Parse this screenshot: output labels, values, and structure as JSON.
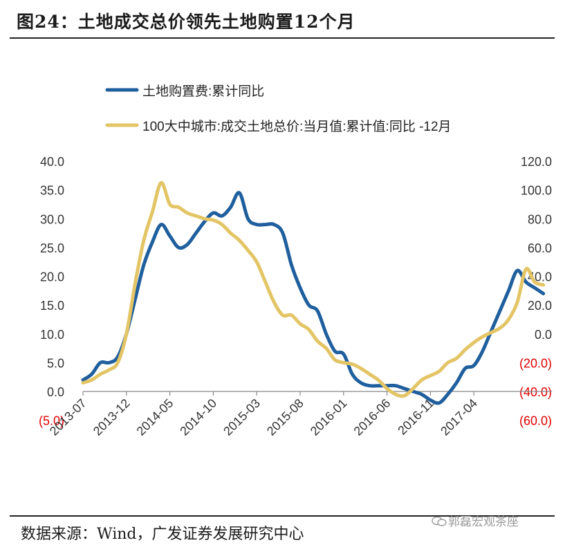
{
  "header": {
    "title": "图24：土地成交总价领先土地购置12个月"
  },
  "footer": {
    "source": "数据来源：Wind，广发证券发展研究中心",
    "watermark": "郭磊宏观茶座"
  },
  "colors": {
    "series1": "#1f5f9e",
    "series2": "#e3c565",
    "negative": "#e00000"
  },
  "chart_data": {
    "type": "line",
    "x_ticks": [
      "2013-07",
      "2013-12",
      "2014-05",
      "2014-10",
      "2015-03",
      "2015-08",
      "2016-01",
      "2016-06",
      "2016-11",
      "2017-04"
    ],
    "y_left": {
      "ticks": [
        "40.0",
        "35.0",
        "30.0",
        "25.0",
        "20.0",
        "15.0",
        "10.0",
        "5.0",
        "0.0",
        "(5.0)"
      ],
      "range": [
        -5,
        40
      ]
    },
    "y_right": {
      "ticks": [
        "120.0",
        "100.0",
        "80.0",
        "60.0",
        "40.0",
        "20.0",
        "0.0",
        "(20.0)",
        "(40.0)",
        "(60.0)"
      ],
      "range": [
        -60,
        120
      ]
    },
    "legend": [
      "土地购置费:累计同比",
      "100大中城市:成交土地总价:当月值:累计值:同比 -12月"
    ],
    "legend_position": "top-left",
    "series": [
      {
        "name": "土地购置费:累计同比",
        "axis": "left",
        "color": "#1f5f9e",
        "points": [
          [
            0,
            2
          ],
          [
            1,
            3
          ],
          [
            2,
            5
          ],
          [
            3,
            5
          ],
          [
            4,
            6
          ],
          [
            5,
            10
          ],
          [
            6,
            16
          ],
          [
            7,
            22
          ],
          [
            8,
            26
          ],
          [
            9,
            29
          ],
          [
            10,
            27
          ],
          [
            11,
            25
          ],
          [
            12,
            25.5
          ],
          [
            13,
            27.5
          ],
          [
            14,
            29.5
          ],
          [
            15,
            31
          ],
          [
            16,
            30.5
          ],
          [
            17,
            32
          ],
          [
            18,
            34.5
          ],
          [
            19,
            30
          ],
          [
            20,
            29
          ],
          [
            21,
            29
          ],
          [
            22,
            29
          ],
          [
            23,
            27.5
          ],
          [
            24,
            22
          ],
          [
            25,
            18
          ],
          [
            26,
            15
          ],
          [
            27,
            14
          ],
          [
            28,
            10
          ],
          [
            29,
            7
          ],
          [
            30,
            6.5
          ],
          [
            31,
            3
          ],
          [
            32,
            1.5
          ],
          [
            33,
            1
          ],
          [
            34,
            1
          ],
          [
            35,
            1
          ],
          [
            36,
            1
          ],
          [
            37,
            0.5
          ],
          [
            38,
            0
          ],
          [
            39,
            -0.5
          ],
          [
            40,
            -1.5
          ],
          [
            41,
            -2
          ],
          [
            42,
            -0.5
          ],
          [
            43,
            1.5
          ],
          [
            44,
            4
          ],
          [
            45,
            4.5
          ],
          [
            46,
            7
          ],
          [
            47,
            10.5
          ],
          [
            48,
            14
          ],
          [
            49,
            17.5
          ],
          [
            50,
            21
          ],
          [
            51,
            19
          ],
          [
            52,
            18
          ],
          [
            53,
            17
          ]
        ]
      },
      {
        "name": "100大中城市:成交土地总价:当月值:累计值:同比 -12月",
        "axis": "right",
        "color": "#e3c565",
        "points": [
          [
            0,
            -34
          ],
          [
            1,
            -32
          ],
          [
            2,
            -28
          ],
          [
            3,
            -25
          ],
          [
            4,
            -20
          ],
          [
            5,
            0
          ],
          [
            6,
            35
          ],
          [
            7,
            65
          ],
          [
            8,
            85
          ],
          [
            9,
            105
          ],
          [
            10,
            90
          ],
          [
            11,
            88
          ],
          [
            12,
            84
          ],
          [
            13,
            82
          ],
          [
            14,
            80
          ],
          [
            15,
            79
          ],
          [
            16,
            76
          ],
          [
            17,
            70
          ],
          [
            18,
            65
          ],
          [
            19,
            58
          ],
          [
            20,
            50
          ],
          [
            21,
            36
          ],
          [
            22,
            22
          ],
          [
            23,
            13
          ],
          [
            24,
            13
          ],
          [
            25,
            7
          ],
          [
            26,
            3
          ],
          [
            27,
            -5
          ],
          [
            28,
            -10
          ],
          [
            29,
            -18
          ],
          [
            30,
            -20
          ],
          [
            31,
            -21
          ],
          [
            32,
            -24
          ],
          [
            33,
            -28
          ],
          [
            34,
            -32
          ],
          [
            35,
            -38
          ],
          [
            36,
            -42
          ],
          [
            37,
            -43
          ],
          [
            38,
            -38
          ],
          [
            39,
            -32
          ],
          [
            40,
            -29
          ],
          [
            41,
            -26
          ],
          [
            42,
            -20
          ],
          [
            43,
            -17
          ],
          [
            44,
            -11
          ],
          [
            45,
            -6
          ],
          [
            46,
            -2
          ],
          [
            47,
            1
          ],
          [
            48,
            4
          ],
          [
            49,
            10
          ],
          [
            50,
            22
          ],
          [
            51,
            45
          ],
          [
            52,
            36
          ],
          [
            53,
            34
          ]
        ]
      }
    ]
  }
}
